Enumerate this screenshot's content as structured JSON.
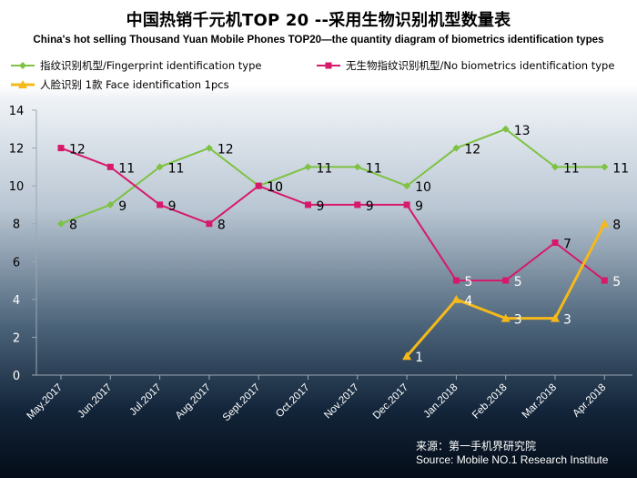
{
  "chart_data": {
    "type": "line",
    "title": "中国热销千元机TOP 20 --采用生物识别机型数量表",
    "subtitle": "China's hot selling Thousand Yuan Mobile Phones TOP20—the quantity diagram of biometrics identification types",
    "categories": [
      "May.2017",
      "Jun.2017",
      "Jul.2017",
      "Aug.2017",
      "Sept.2017",
      "Oct.2017",
      "Nov.2017",
      "Dec.2017",
      "Jan.2018",
      "Feb.2018",
      "Mar.2018",
      "Apr.2018"
    ],
    "ylim": [
      0,
      14
    ],
    "yticks": [
      "0",
      "2",
      "4",
      "6",
      "8",
      "10",
      "12",
      "14"
    ],
    "grid": false,
    "legend_position": "top",
    "series": [
      {
        "name": "指纹识别机型/Fingerprint identification type",
        "color": "#7dc242",
        "marker": "diamond",
        "values": [
          8,
          9,
          11,
          12,
          10,
          11,
          11,
          10,
          12,
          13,
          11,
          11
        ]
      },
      {
        "name": "无生物指纹识别机型/No biometrics identification type",
        "color": "#d6196b",
        "marker": "square",
        "values": [
          12,
          11,
          9,
          8,
          10,
          9,
          9,
          9,
          5,
          5,
          7,
          5
        ]
      },
      {
        "name": "人脸识别 1款 Face identification 1pcs",
        "color": "#f5b919",
        "marker": "triangle",
        "values": [
          null,
          null,
          null,
          null,
          null,
          null,
          null,
          1,
          4,
          3,
          3,
          8
        ]
      }
    ]
  },
  "source": {
    "line1": "来源：第一手机界研究院",
    "line2": "Source: Mobile NO.1 Research Institute"
  }
}
